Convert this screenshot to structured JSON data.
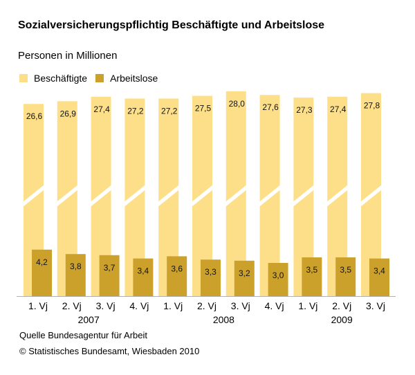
{
  "chart_data": {
    "type": "bar",
    "title": "Sozialversicherungspflichtig Beschäftigte und Arbeitslose",
    "subtitle": "Personen in Millionen",
    "xlabel": "",
    "ylabel": "",
    "axis_break": true,
    "grid": false,
    "legend_position": "top-left",
    "categories": [
      "1. Vj",
      "2. Vj",
      "3. Vj",
      "4. Vj",
      "1. Vj",
      "2. Vj",
      "3. Vj",
      "4. Vj",
      "1. Vj",
      "2. Vj",
      "3. Vj"
    ],
    "year_labels": [
      {
        "label": "2007",
        "center_index": 1.5
      },
      {
        "label": "2008",
        "center_index": 5.5
      },
      {
        "label": "2009",
        "center_index": 9
      }
    ],
    "series": [
      {
        "name": "Beschäftigte",
        "color": "#FDDF8A",
        "values": [
          26.6,
          26.9,
          27.4,
          27.2,
          27.2,
          27.5,
          28.0,
          27.6,
          27.3,
          27.4,
          27.8
        ],
        "labels": [
          "26,6",
          "26,9",
          "27,4",
          "27,2",
          "27,2",
          "27,5",
          "28,0",
          "27,6",
          "27,3",
          "27,4",
          "27,8"
        ]
      },
      {
        "name": "Arbeitslose",
        "color": "#CCA12B",
        "values": [
          4.2,
          3.8,
          3.7,
          3.4,
          3.6,
          3.3,
          3.2,
          3.0,
          3.5,
          3.5,
          3.4
        ],
        "labels": [
          "4,2",
          "3,8",
          "3,7",
          "3,4",
          "3,6",
          "3,3",
          "3,2",
          "3,0",
          "3,5",
          "3,5",
          "3,4"
        ]
      }
    ]
  },
  "footer": {
    "source": "Quelle Bundesagentur für Arbeit",
    "copyright": "© Statistisches Bundesamt, Wiesbaden 2010"
  }
}
